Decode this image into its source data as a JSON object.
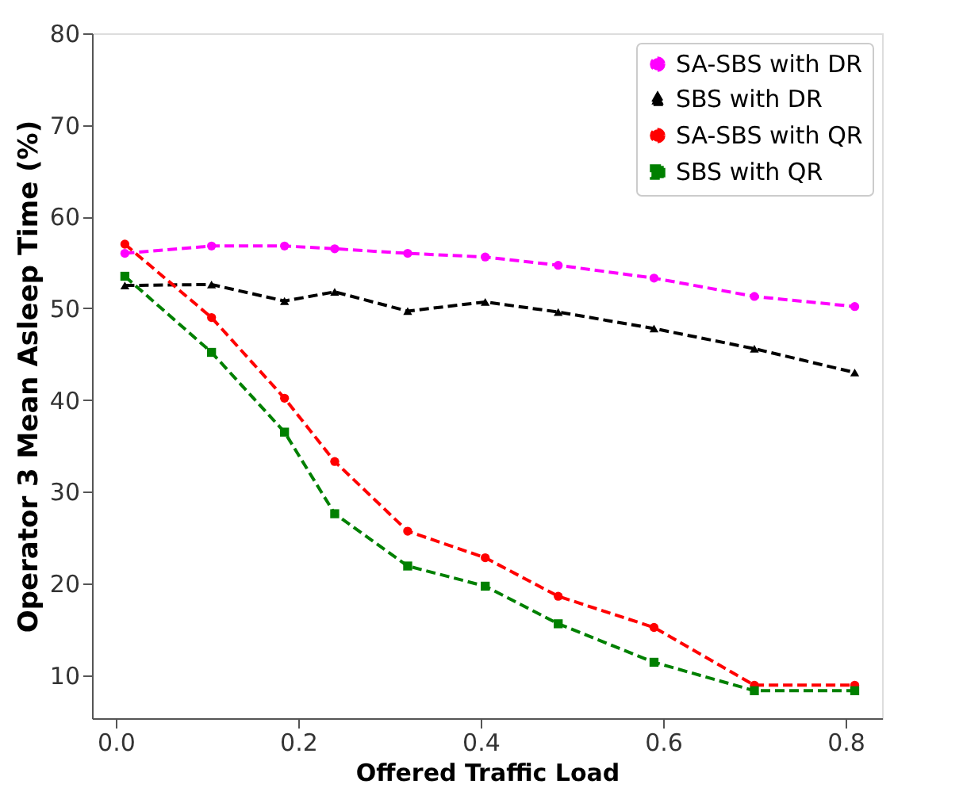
{
  "chart_data": {
    "type": "line",
    "xlabel": "Offered Traffic Load",
    "ylabel": "Operator 3 Mean Asleep Time (%)",
    "x": [
      0.01,
      0.105,
      0.185,
      0.24,
      0.32,
      0.405,
      0.485,
      0.59,
      0.7,
      0.81
    ],
    "xlim": [
      -0.026,
      0.84
    ],
    "xticks": [
      {
        "value": 0,
        "label": "0.0"
      },
      0.2,
      0.4,
      0.6,
      0.8
    ],
    "ylim": [
      5.3,
      80
    ],
    "yticks": [
      10,
      20,
      30,
      40,
      50,
      60,
      70,
      80
    ],
    "line_style": "dashed",
    "grid": false,
    "legend": "top right",
    "series": [
      {
        "name": "SA-SBS with DR",
        "color": "#ff00ff",
        "marker": "circle",
        "values": [
          56,
          56.8,
          56.8,
          56.5,
          56,
          55.6,
          54.7,
          53.3,
          51.3,
          50.2
        ]
      },
      {
        "name": "SBS with DR",
        "color": "#000000",
        "marker": "triangle",
        "values": [
          52.5,
          52.6,
          50.8,
          51.8,
          49.7,
          50.7,
          49.6,
          47.8,
          45.6,
          43
        ]
      },
      {
        "name": "SA-SBS with QR",
        "color": "#ff0000",
        "marker": "circle",
        "values": [
          57,
          49,
          40.2,
          33.3,
          25.7,
          22.8,
          18.6,
          15.2,
          8.9,
          8.9
        ]
      },
      {
        "name": "SBS with QR",
        "color": "#008000",
        "marker": "square",
        "values": [
          53.5,
          45.2,
          36.5,
          27.6,
          21.9,
          19.7,
          15.6,
          11.4,
          8.3,
          8.3
        ]
      }
    ]
  }
}
